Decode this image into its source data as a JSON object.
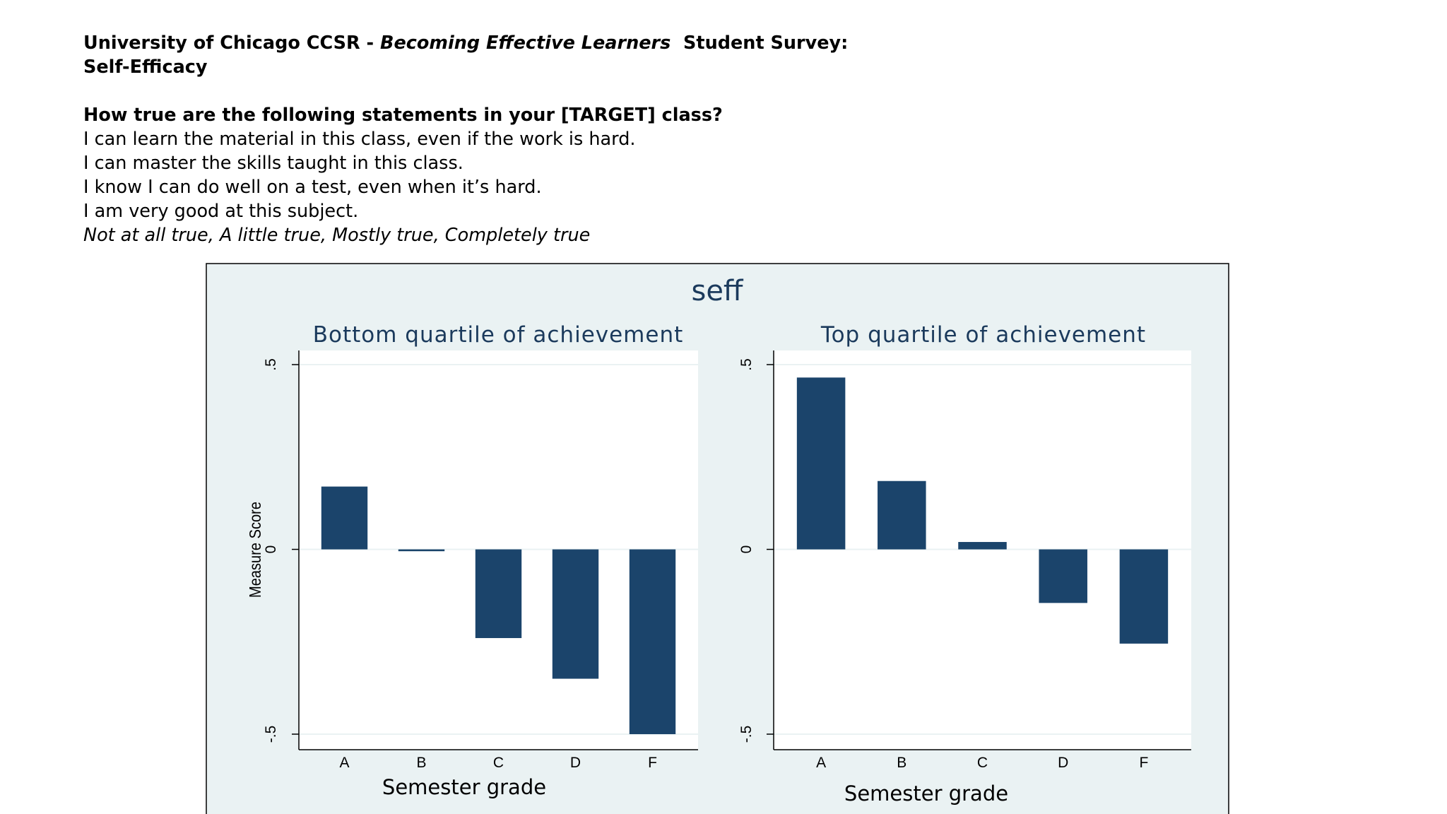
{
  "header": {
    "line1_a": "University of Chicago CCSR - ",
    "line1_b": "Becoming Effective Learners",
    "line1_c": "  Student Survey:",
    "line2": "Self-Efficacy"
  },
  "question": {
    "prompt": "How true are the following statements in your [TARGET] class?",
    "items": [
      "I can learn the material in this class, even if the work is hard.",
      "I can master the skills taught in this class.",
      "I know I can do well on a test, even when it’s hard.",
      "I am very good at this subject."
    ],
    "scale": "Not at all true, A little true, Mostly true, Completely true"
  },
  "colors": {
    "bar": "#1b446b",
    "panel_bg": "#eaf2f3",
    "plot_bg": "#ffffff",
    "title": "#1b3a5c"
  },
  "chart_data": {
    "type": "bar",
    "title": "seff",
    "ylabel": "Measure Score",
    "ylim": [
      -0.5,
      0.5
    ],
    "yticks": [
      -0.5,
      0,
      0.5
    ],
    "ytick_labels": [
      "-.5",
      "0",
      ".5"
    ],
    "grid": true,
    "panels": [
      {
        "title": "Bottom quartile of achievement",
        "xlabel": "Semester grade",
        "categories": [
          "A",
          "B",
          "C",
          "D",
          "F"
        ],
        "values": [
          0.17,
          -0.005,
          -0.24,
          -0.35,
          -0.5
        ]
      },
      {
        "title": "Top quartile of achievement",
        "xlabel": "Semester grade",
        "categories": [
          "A",
          "B",
          "C",
          "D",
          "F"
        ],
        "values": [
          0.465,
          0.185,
          0.02,
          -0.145,
          -0.255
        ]
      }
    ]
  }
}
